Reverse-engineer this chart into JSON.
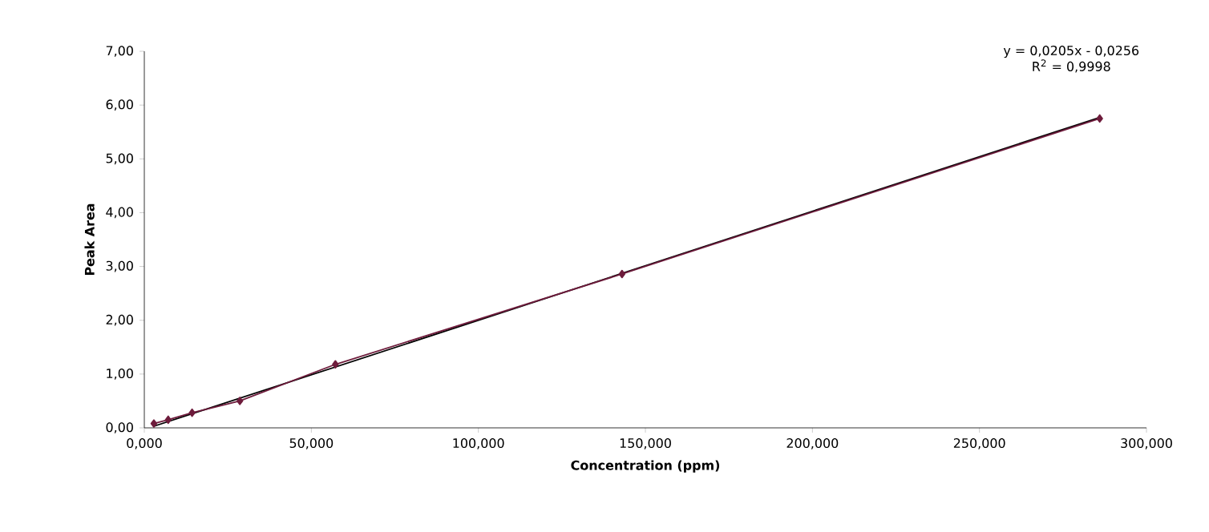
{
  "chart_data": {
    "type": "line",
    "xlabel": "Concentration (ppm)",
    "ylabel": "Peak Area",
    "annotations": [
      "y = 0,0205x - 0,0256",
      "R$^{2}$ = 0,9998"
    ],
    "xlim": [
      0,
      300
    ],
    "ylim": [
      0,
      7
    ],
    "xticks": [
      {
        "value": 0,
        "label": "0,000"
      },
      {
        "value": 50,
        "label": "50,000"
      },
      {
        "value": 100,
        "label": "100,000"
      },
      {
        "value": 150,
        "label": "150,000"
      },
      {
        "value": 200,
        "label": "200,000"
      },
      {
        "value": 250,
        "label": "250,000"
      },
      {
        "value": 300,
        "label": "300,000"
      }
    ],
    "yticks": [
      {
        "value": 0,
        "label": "0,00"
      },
      {
        "value": 1,
        "label": "1,00"
      },
      {
        "value": 2,
        "label": "2,00"
      },
      {
        "value": 3,
        "label": "3,00"
      },
      {
        "value": 4,
        "label": "4,00"
      },
      {
        "value": 5,
        "label": "5,00"
      },
      {
        "value": 6,
        "label": "6,00"
      },
      {
        "value": 7,
        "label": "7,00"
      }
    ],
    "grid": false,
    "series": [
      {
        "color": "#000000",
        "marker": "none",
        "x": [
          2.86,
          286
        ],
        "values": [
          0.03,
          5.77
        ]
      },
      {
        "color": "#6e1c3c",
        "marker": "diamond",
        "x": [
          2.86,
          7.15,
          14.3,
          28.6,
          57.2,
          143,
          286
        ],
        "values": [
          0.08,
          0.15,
          0.28,
          0.5,
          1.18,
          2.86,
          5.75
        ]
      }
    ]
  }
}
